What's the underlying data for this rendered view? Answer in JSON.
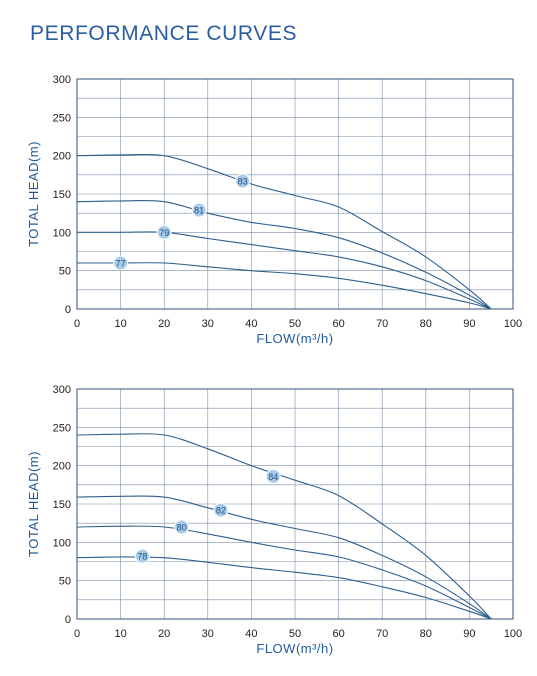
{
  "page": {
    "title": "PERFORMANCE CURVES"
  },
  "chart_data": [
    {
      "type": "line",
      "xlabel": "FLOW(m³/h)",
      "ylabel": "TOTAL HEAD(m)",
      "xlim": [
        0,
        100
      ],
      "ylim": [
        0,
        300
      ],
      "xticks": [
        0,
        10,
        20,
        30,
        40,
        50,
        60,
        70,
        80,
        90,
        100
      ],
      "yticks": [
        0,
        50,
        100,
        150,
        200,
        250,
        300
      ],
      "grid": true,
      "series": [
        {
          "label": "83",
          "points": [
            [
              0,
              200
            ],
            [
              10,
              201
            ],
            [
              20,
              200
            ],
            [
              30,
              183
            ],
            [
              40,
              163
            ],
            [
              50,
              148
            ],
            [
              60,
              133
            ],
            [
              70,
              101
            ],
            [
              80,
              68
            ],
            [
              90,
              25
            ],
            [
              95,
              0
            ]
          ],
          "label_at": [
            38,
            167
          ]
        },
        {
          "label": "81",
          "points": [
            [
              0,
              140
            ],
            [
              10,
              141
            ],
            [
              20,
              140
            ],
            [
              30,
              125
            ],
            [
              40,
              113
            ],
            [
              50,
              105
            ],
            [
              60,
              93
            ],
            [
              70,
              73
            ],
            [
              80,
              48
            ],
            [
              90,
              18
            ],
            [
              95,
              0
            ]
          ],
          "label_at": [
            28,
            129
          ]
        },
        {
          "label": "79",
          "points": [
            [
              0,
              100
            ],
            [
              10,
              100
            ],
            [
              20,
              100
            ],
            [
              30,
              92
            ],
            [
              40,
              84
            ],
            [
              50,
              76
            ],
            [
              60,
              68
            ],
            [
              70,
              55
            ],
            [
              80,
              37
            ],
            [
              90,
              13
            ],
            [
              95,
              0
            ]
          ],
          "label_at": [
            20,
            100
          ]
        },
        {
          "label": "77",
          "points": [
            [
              0,
              60
            ],
            [
              10,
              60
            ],
            [
              20,
              60
            ],
            [
              30,
              55
            ],
            [
              40,
              50
            ],
            [
              50,
              46
            ],
            [
              60,
              40
            ],
            [
              70,
              31
            ],
            [
              80,
              20
            ],
            [
              90,
              8
            ],
            [
              95,
              0
            ]
          ],
          "label_at": [
            10,
            60
          ]
        }
      ]
    },
    {
      "type": "line",
      "xlabel": "FLOW(m³/h)",
      "ylabel": "TOTAL HEAD(m)",
      "xlim": [
        0,
        100
      ],
      "ylim": [
        0,
        300
      ],
      "xticks": [
        0,
        10,
        20,
        30,
        40,
        50,
        60,
        70,
        80,
        90,
        100
      ],
      "yticks": [
        0,
        50,
        100,
        150,
        200,
        250,
        300
      ],
      "grid": true,
      "series": [
        {
          "label": "84",
          "points": [
            [
              0,
              240
            ],
            [
              10,
              241
            ],
            [
              20,
              240
            ],
            [
              30,
              222
            ],
            [
              40,
              200
            ],
            [
              50,
              181
            ],
            [
              60,
              161
            ],
            [
              70,
              124
            ],
            [
              80,
              83
            ],
            [
              90,
              30
            ],
            [
              95,
              0
            ]
          ],
          "label_at": [
            45,
            186
          ]
        },
        {
          "label": "82",
          "points": [
            [
              0,
              159
            ],
            [
              10,
              160
            ],
            [
              20,
              159
            ],
            [
              30,
              145
            ],
            [
              40,
              130
            ],
            [
              50,
              118
            ],
            [
              60,
              106
            ],
            [
              70,
              83
            ],
            [
              80,
              55
            ],
            [
              90,
              20
            ],
            [
              95,
              0
            ]
          ],
          "label_at": [
            33,
            142
          ]
        },
        {
          "label": "80",
          "points": [
            [
              0,
              120
            ],
            [
              10,
              121
            ],
            [
              20,
              120
            ],
            [
              30,
              111
            ],
            [
              40,
              100
            ],
            [
              50,
              90
            ],
            [
              60,
              81
            ],
            [
              70,
              64
            ],
            [
              80,
              43
            ],
            [
              90,
              15
            ],
            [
              95,
              0
            ]
          ],
          "label_at": [
            24,
            120
          ]
        },
        {
          "label": "78",
          "points": [
            [
              0,
              80
            ],
            [
              10,
              81
            ],
            [
              20,
              80
            ],
            [
              30,
              74
            ],
            [
              40,
              67
            ],
            [
              50,
              61
            ],
            [
              60,
              54
            ],
            [
              70,
              42
            ],
            [
              80,
              28
            ],
            [
              90,
              10
            ],
            [
              95,
              0
            ]
          ],
          "label_at": [
            15,
            82
          ]
        }
      ]
    }
  ]
}
